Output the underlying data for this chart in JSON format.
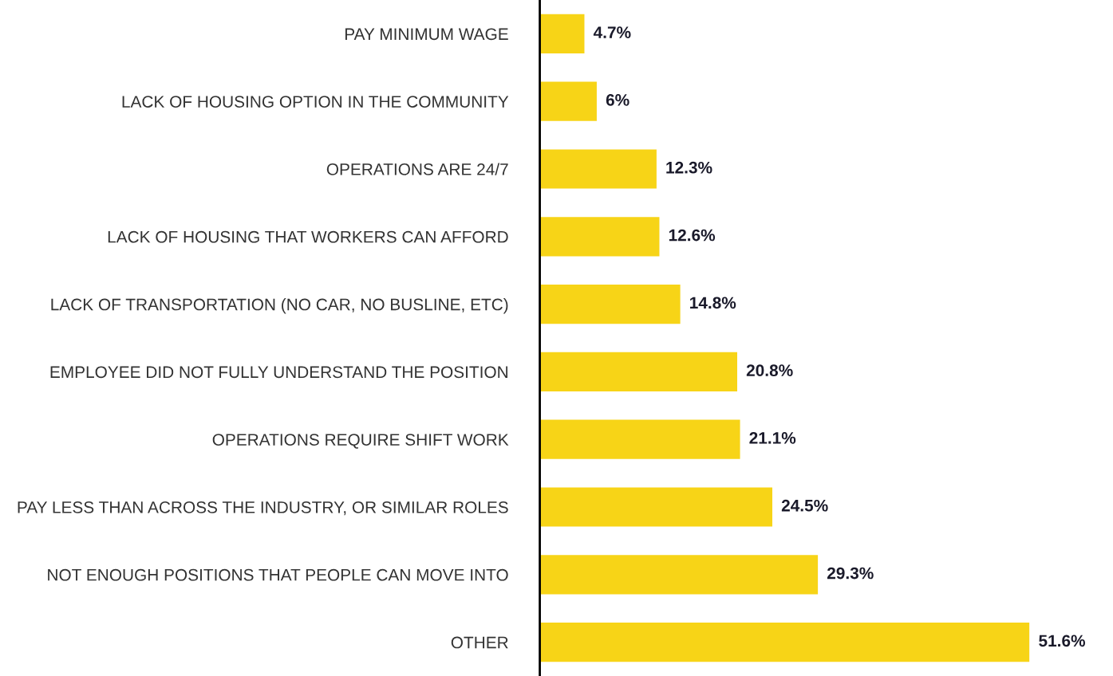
{
  "chart_data": {
    "type": "bar",
    "orientation": "horizontal",
    "categories": [
      "PAY MINIMUM WAGE",
      "LACK OF HOUSING OPTION IN THE COMMUNITY",
      "OPERATIONS ARE 24/7",
      "LACK OF HOUSING THAT WORKERS CAN AFFORD",
      "LACK OF TRANSPORTATION (NO CAR, NO BUSLINE, ETC)",
      "EMPLOYEE DID NOT FULLY UNDERSTAND THE POSITION",
      "OPERATIONS REQUIRE SHIFT WORK",
      "PAY LESS THAN ACROSS THE INDUSTRY, OR SIMILAR ROLES",
      "NOT ENOUGH POSITIONS THAT PEOPLE CAN MOVE INTO",
      "OTHER"
    ],
    "values": [
      4.7,
      6,
      12.3,
      12.6,
      14.8,
      20.8,
      21.1,
      24.5,
      29.3,
      51.6
    ],
    "value_labels": [
      "4.7%",
      "6%",
      "12.3%",
      "12.6%",
      "14.8%",
      "20.8%",
      "21.1%",
      "24.5%",
      "29.3%",
      "51.6%"
    ],
    "color": "#f7d417",
    "grid": false,
    "legend": false
  }
}
